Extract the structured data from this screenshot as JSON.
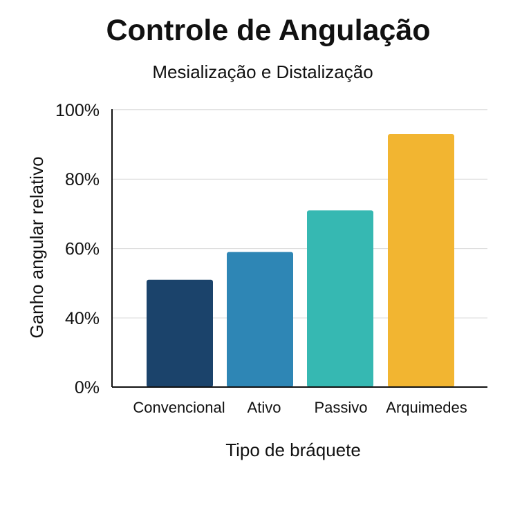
{
  "chart_data": {
    "type": "bar",
    "title": "Controle de Angulação",
    "subtitle": "Mesialização e Distalização",
    "xlabel": "Tipo de bráquete",
    "ylabel": "Ganho angular relativo",
    "categories": [
      "Convencional",
      "Ativo",
      "Passivo",
      "Arquimedes"
    ],
    "values": [
      51,
      59,
      71,
      93
    ],
    "unit": "%",
    "yticks": [
      0,
      40,
      60,
      80,
      100
    ],
    "ytick_labels": [
      "0%",
      "40%",
      "60%",
      "80%",
      "100%"
    ],
    "ylim": [
      0,
      100
    ],
    "colors": [
      "#1b436b",
      "#2e86b5",
      "#36b8b2",
      "#f2b531"
    ],
    "grid": true,
    "legend": "none"
  }
}
